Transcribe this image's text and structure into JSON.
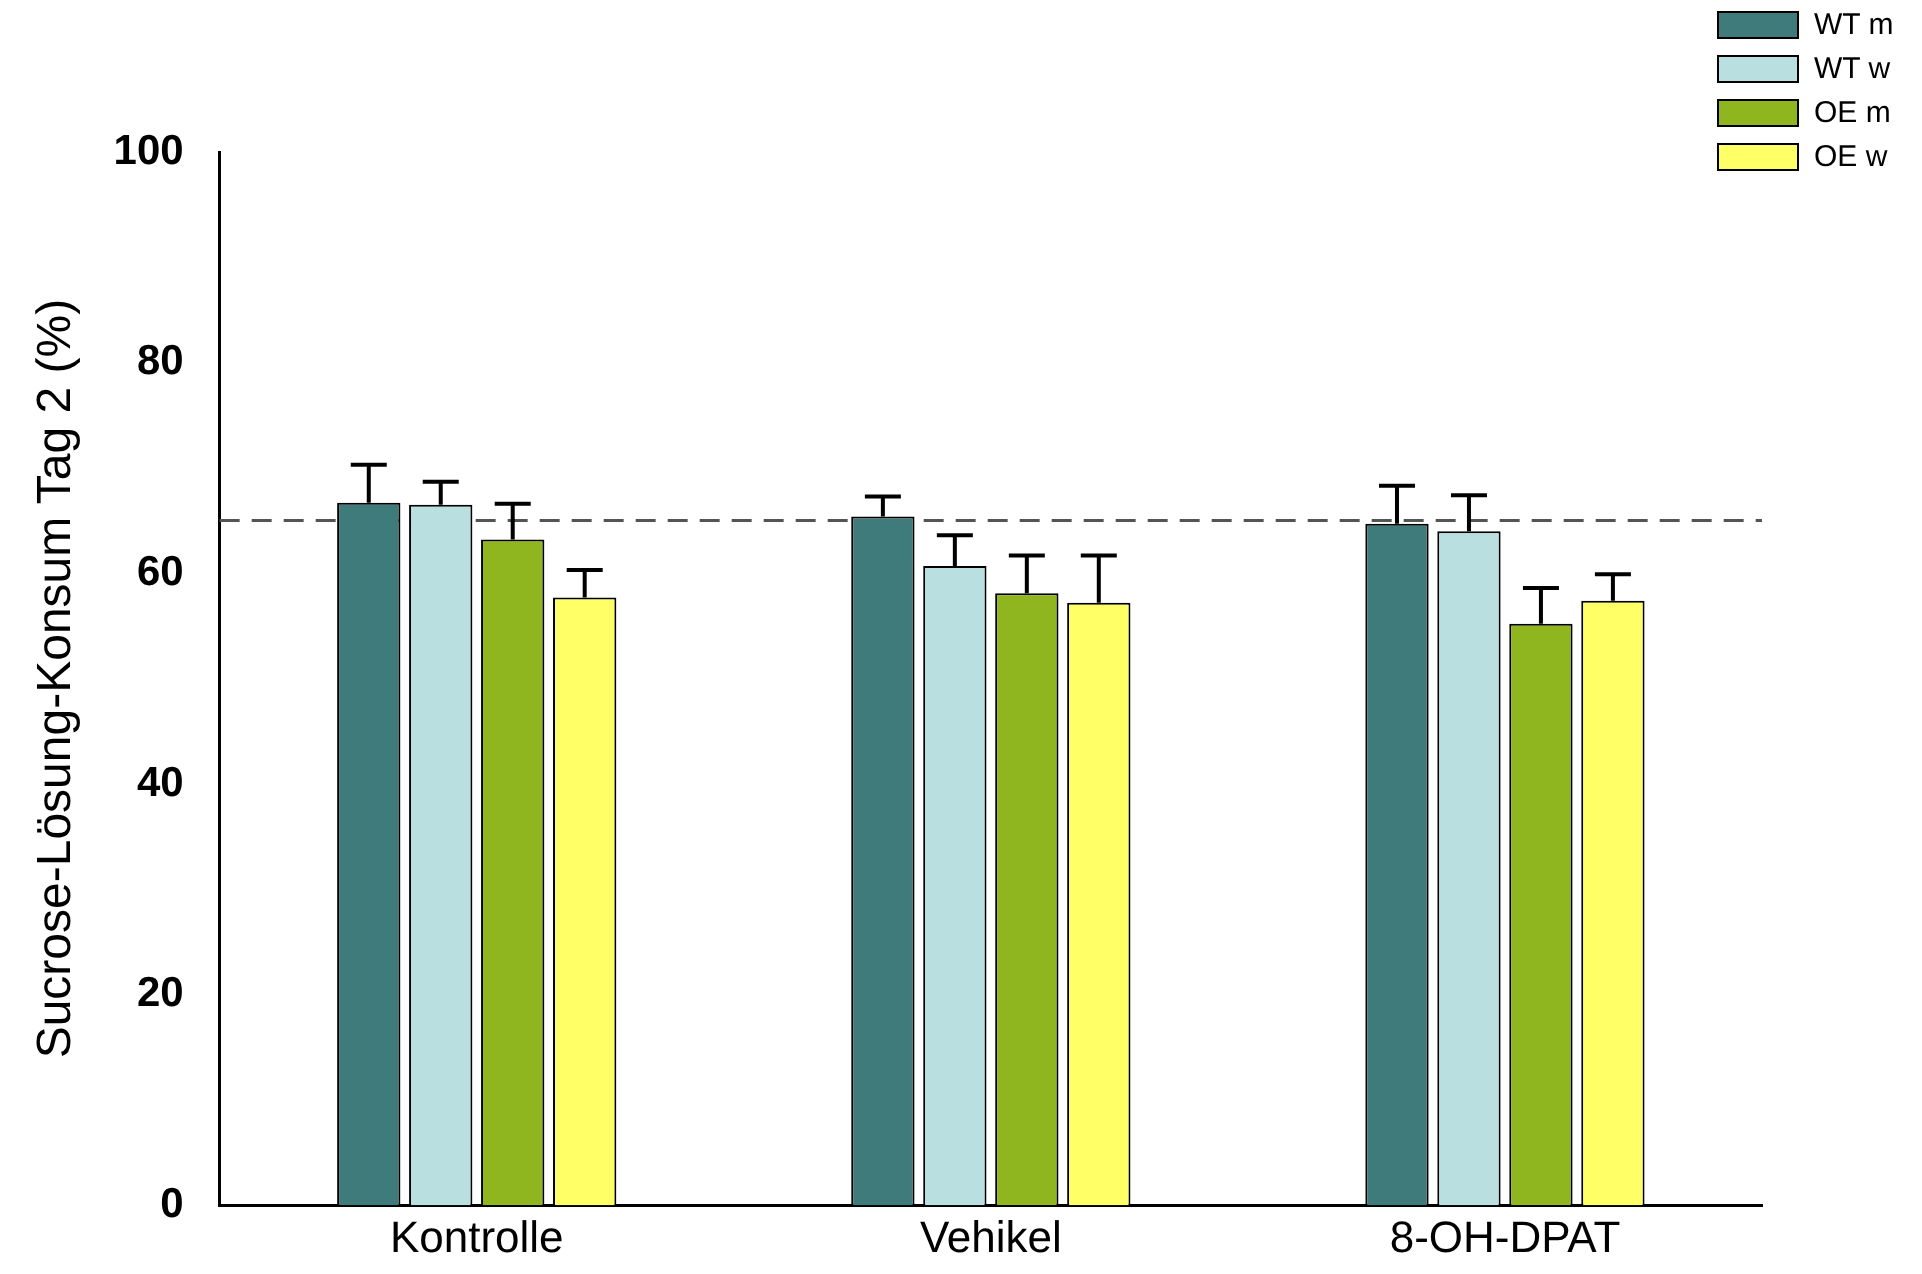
{
  "chart_data": {
    "type": "bar",
    "ylabel": "Sucrose-Lösung-Konsum Tag 2 (%)",
    "categories": [
      "Kontrolle",
      "Vehikel",
      "8-OH-DPAT"
    ],
    "series": [
      {
        "name": "WT m",
        "color": "#3f7b7b",
        "values": [
          66.7,
          65.4,
          64.7
        ],
        "errors": [
          [
            66.7,
            70.3
          ],
          [
            65.4,
            67.3
          ],
          [
            64.7,
            68.3
          ]
        ]
      },
      {
        "name": "WT w",
        "color": "#b9dfe0",
        "values": [
          66.5,
          60.7,
          64.0
        ],
        "errors": [
          [
            66.5,
            68.7
          ],
          [
            60.7,
            63.6
          ],
          [
            64.0,
            67.4
          ]
        ]
      },
      {
        "name": "OE m",
        "color": "#8fb51f",
        "values": [
          63.2,
          58.1,
          55.2
        ],
        "errors": [
          [
            63.2,
            66.6
          ],
          [
            58.1,
            61.7
          ],
          [
            55.2,
            58.6
          ]
        ]
      },
      {
        "name": "OE w",
        "color": "#ffff66",
        "values": [
          57.7,
          57.2,
          57.4
        ],
        "errors": [
          [
            57.7,
            60.3
          ],
          [
            57.2,
            61.7
          ],
          [
            57.4,
            59.9
          ]
        ]
      }
    ],
    "ylim": [
      0,
      100
    ],
    "yticks": [
      0,
      20,
      40,
      60,
      80,
      100
    ],
    "grid": false,
    "legend": "top right",
    "ref_lines": [
      {
        "axis": "y",
        "value": 65,
        "color": "#555555",
        "line_style": "dashed"
      }
    ]
  }
}
